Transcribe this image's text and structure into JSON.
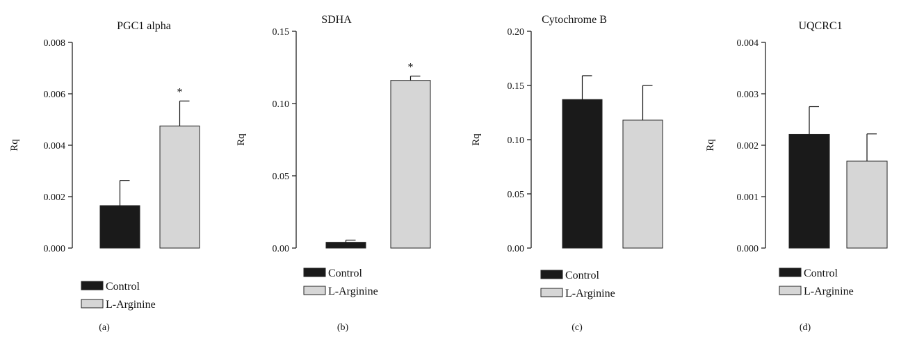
{
  "chart_data": [
    {
      "type": "bar",
      "panel_label": "(a)",
      "title": "PGC1 alpha",
      "ylabel": "Rq",
      "categories": [
        "Control",
        "L-Arginine"
      ],
      "values": [
        0.00165,
        0.00475
      ],
      "errors": [
        0.00098,
        0.00097
      ],
      "significance": [
        "",
        "*"
      ],
      "ylim": [
        0,
        0.008
      ],
      "yticks": [
        "0.000",
        "0.002",
        "0.004",
        "0.006",
        "0.008"
      ],
      "legend": [
        "Control",
        "L-Arginine"
      ]
    },
    {
      "type": "bar",
      "panel_label": "(b)",
      "title": "SDHA",
      "ylabel": "Rq",
      "categories": [
        "Control",
        "L-Arginine"
      ],
      "values": [
        0.004,
        0.116
      ],
      "errors": [
        0.0015,
        0.003
      ],
      "significance": [
        "",
        "*"
      ],
      "ylim": [
        0,
        0.15
      ],
      "yticks": [
        "0.00",
        "0.05",
        "0.10",
        "0.15"
      ],
      "legend": [
        "Control",
        "L-Arginine"
      ]
    },
    {
      "type": "bar",
      "panel_label": "(c)",
      "title": "Cytochrome B",
      "ylabel": "Rq",
      "categories": [
        "Control",
        "L-Arginine"
      ],
      "values": [
        0.137,
        0.118
      ],
      "errors": [
        0.022,
        0.032
      ],
      "significance": [
        "",
        ""
      ],
      "ylim": [
        0,
        0.2
      ],
      "yticks": [
        "0.00",
        "0.05",
        "0.10",
        "0.15",
        "0.20"
      ],
      "legend": [
        "Control",
        "L-Arginine"
      ]
    },
    {
      "type": "bar",
      "panel_label": "(d)",
      "title": "UQCRC1",
      "ylabel": "Rq",
      "categories": [
        "Control",
        "L-Arginine"
      ],
      "values": [
        0.00221,
        0.00169
      ],
      "errors": [
        0.00054,
        0.00053
      ],
      "significance": [
        "",
        ""
      ],
      "ylim": [
        0,
        0.004
      ],
      "yticks": [
        "0.000",
        "0.001",
        "0.002",
        "0.003",
        "0.004"
      ],
      "legend": [
        "Control",
        "L-Arginine"
      ]
    }
  ],
  "colors": {
    "control": "#1a1a1a",
    "l_arginine": "#d6d6d6",
    "outline": "#222222"
  }
}
